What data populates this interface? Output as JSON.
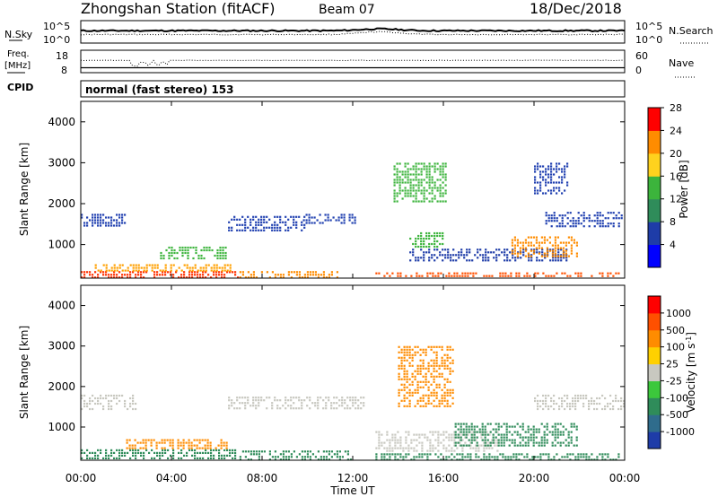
{
  "header": {
    "title": "Zhongshan Station (fitACF)",
    "beam": "Beam 07",
    "date": "18/Dec/2018"
  },
  "strip1": {
    "left_label": "N.Sky",
    "right_label": "N.Search",
    "left_ticks": [
      "10^5",
      "10^0"
    ],
    "right_ticks": [
      "10^5",
      "10^0"
    ]
  },
  "strip2": {
    "left_label_1": "Freq.",
    "left_label_2": "[MHz]",
    "right_label": "Nave",
    "left_ticks": [
      "18",
      "8"
    ],
    "right_ticks": [
      "60",
      "0"
    ]
  },
  "cpid": {
    "label": "CPID",
    "mode": "normal (fast stereo) 153"
  },
  "chart_data": [
    {
      "type": "heatmap",
      "title": "",
      "ylabel": "Slant Range [km]",
      "ylim": [
        180,
        4500
      ],
      "yticks": [
        "1000",
        "2000",
        "3000",
        "4000"
      ],
      "x_range_hours": [
        0,
        24
      ],
      "colorbar": {
        "label": "Power [dB]",
        "ticks": [
          "4",
          "8",
          "12",
          "16",
          "20",
          "24",
          "28"
        ],
        "colors": [
          "#0000ff",
          "#1e3ca8",
          "#2f8c5a",
          "#3cb43c",
          "#ffd21e",
          "#ff8c00",
          "#ff0000"
        ]
      },
      "blocks": [
        {
          "t0": 0.0,
          "t1": 7.0,
          "r0": 180,
          "r1": 350,
          "color": "#ff3000"
        },
        {
          "t0": 0.5,
          "t1": 6.8,
          "r0": 350,
          "r1": 520,
          "color": "#ffa000"
        },
        {
          "t0": 0.0,
          "t1": 2.0,
          "r0": 1400,
          "r1": 1750,
          "color": "#2040b0"
        },
        {
          "t0": 3.5,
          "t1": 6.5,
          "r0": 600,
          "r1": 950,
          "color": "#3cb43c"
        },
        {
          "t0": 7.0,
          "t1": 11.5,
          "r0": 180,
          "r1": 350,
          "color": "#ff8c00"
        },
        {
          "t0": 6.5,
          "t1": 10.0,
          "r0": 1300,
          "r1": 1700,
          "color": "#2040b0"
        },
        {
          "t0": 9.8,
          "t1": 12.2,
          "r0": 1500,
          "r1": 1750,
          "color": "#2040b0"
        },
        {
          "t0": 13.0,
          "t1": 23.8,
          "r0": 180,
          "r1": 320,
          "color": "#ff5000"
        },
        {
          "t0": 13.8,
          "t1": 16.2,
          "r0": 2000,
          "r1": 3000,
          "color": "#3cb43c"
        },
        {
          "t0": 14.5,
          "t1": 21.5,
          "r0": 550,
          "r1": 900,
          "color": "#1e3ca8"
        },
        {
          "t0": 14.5,
          "t1": 16.0,
          "r0": 900,
          "r1": 1300,
          "color": "#3cb43c"
        },
        {
          "t0": 19.0,
          "t1": 22.0,
          "r0": 700,
          "r1": 1200,
          "color": "#ff8c00"
        },
        {
          "t0": 20.5,
          "t1": 24.0,
          "r0": 1400,
          "r1": 1800,
          "color": "#2040b0"
        },
        {
          "t0": 20.0,
          "t1": 21.5,
          "r0": 2200,
          "r1": 3000,
          "color": "#2040b0"
        }
      ]
    },
    {
      "type": "heatmap",
      "title": "",
      "ylabel": "Slant Range [km]",
      "ylim": [
        180,
        4500
      ],
      "yticks": [
        "1000",
        "2000",
        "3000",
        "4000"
      ],
      "xlabel": "Time UT",
      "xticks": [
        "00:00",
        "04:00",
        "08:00",
        "12:00",
        "16:00",
        "20:00",
        "00:00"
      ],
      "x_range_hours": [
        0,
        24
      ],
      "colorbar": {
        "label": "Velocity [m s^-1]",
        "ticks": [
          "1000",
          "500",
          "100",
          "25",
          "-25",
          "-100",
          "-500",
          "-1000"
        ],
        "colors": [
          "#1e3ca8",
          "#2f6c8c",
          "#2f8c5a",
          "#3cc83c",
          "#c8c8c0",
          "#ffd000",
          "#ff8c00",
          "#ff5000",
          "#ff0000"
        ]
      },
      "blocks": [
        {
          "t0": 0.0,
          "t1": 7.0,
          "r0": 180,
          "r1": 450,
          "color": "#2f8c5a"
        },
        {
          "t0": 0.0,
          "t1": 2.5,
          "r0": 1400,
          "r1": 1800,
          "color": "#c8c8c0"
        },
        {
          "t0": 2.0,
          "t1": 6.5,
          "r0": 450,
          "r1": 700,
          "color": "#ff8c00"
        },
        {
          "t0": 6.5,
          "t1": 12.5,
          "r0": 1400,
          "r1": 1750,
          "color": "#c8c8c0"
        },
        {
          "t0": 7.0,
          "t1": 12.0,
          "r0": 180,
          "r1": 420,
          "color": "#2f8c5a"
        },
        {
          "t0": 13.0,
          "t1": 18.5,
          "r0": 400,
          "r1": 900,
          "color": "#c8c8c0"
        },
        {
          "t0": 14.0,
          "t1": 16.5,
          "r0": 1500,
          "r1": 3000,
          "color": "#ff8c00"
        },
        {
          "t0": 16.5,
          "t1": 22.0,
          "r0": 500,
          "r1": 1100,
          "color": "#2f8c5a"
        },
        {
          "t0": 13.0,
          "t1": 23.8,
          "r0": 180,
          "r1": 350,
          "color": "#2f8c5a"
        },
        {
          "t0": 20.0,
          "t1": 24.0,
          "r0": 1400,
          "r1": 1800,
          "color": "#c8c8c0"
        }
      ]
    }
  ]
}
